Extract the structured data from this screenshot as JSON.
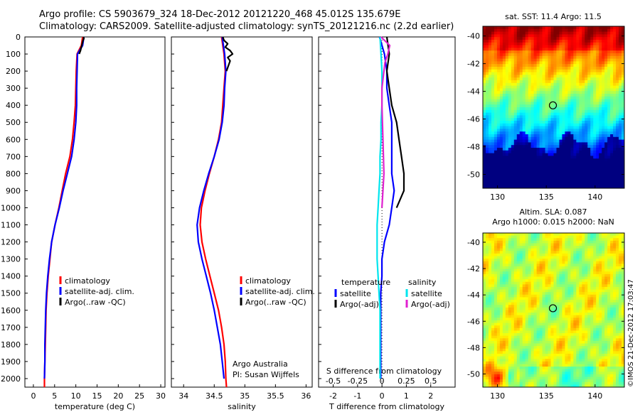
{
  "header": {
    "line1": "Argo profile: CS 5903679_324 18-Dec-2012 20121220_468 45.012S 135.679E",
    "line2": "Climatology: CARS2009. Satellite-adjusted climatology: synTS_20121216.nc (2.2d earlier)"
  },
  "colors": {
    "climatology": "#ff0000",
    "satellite": "#0000ff",
    "argo": "#000000",
    "satellite_s": "#00e5ee",
    "argo_s": "#e020d0"
  },
  "map_top": {
    "title": "sat. SST: 11.4  Argo: 11.5",
    "yticks": [
      "-40",
      "-42",
      "-44",
      "-46",
      "-48",
      "-50"
    ],
    "xticks": [
      "130",
      "135",
      "140"
    ]
  },
  "map_bottom": {
    "title1": "Altim. SLA: 0.087",
    "title2": "Argo h1000: 0.015 h2000: NaN",
    "yticks": [
      "-40",
      "-42",
      "-44",
      "-46",
      "-48",
      "-50"
    ],
    "xticks": [
      "130",
      "135",
      "140"
    ]
  },
  "credit": "©IMOS 21-Dec-2012 17:03:47",
  "chart_data": [
    {
      "type": "line",
      "title": "",
      "xlabel": "temperature (deg C)",
      "ylabel": "",
      "xlim": [
        -2,
        31
      ],
      "ylim": [
        2050,
        0
      ],
      "xticks": [
        0,
        5,
        10,
        15,
        20,
        25,
        30
      ],
      "yticks": [
        0,
        100,
        200,
        300,
        400,
        500,
        600,
        700,
        800,
        900,
        1000,
        1100,
        1200,
        1300,
        1400,
        1500,
        1600,
        1700,
        1800,
        1900,
        2000
      ],
      "legend": [
        "climatology",
        "satellite-adj. clim.",
        "Argo(..raw -QC)"
      ],
      "series": [
        {
          "name": "climatology",
          "depth": [
            0,
            50,
            100,
            200,
            300,
            400,
            500,
            600,
            700,
            800,
            900,
            1000,
            1100,
            1200,
            1300,
            1400,
            1500,
            1600,
            1700,
            1800,
            1900,
            2000,
            2050
          ],
          "values": [
            11.6,
            11.3,
            10.3,
            10.1,
            10.0,
            9.9,
            9.6,
            9.2,
            8.6,
            7.6,
            6.8,
            6.0,
            5.1,
            4.3,
            3.9,
            3.5,
            3.2,
            3.0,
            2.9,
            2.8,
            2.7,
            2.6,
            2.6
          ]
        },
        {
          "name": "satellite-adj. clim.",
          "depth": [
            0,
            50,
            100,
            200,
            300,
            400,
            500,
            600,
            700,
            800,
            900,
            1000,
            1100,
            1200,
            1300,
            1400,
            1500,
            1600,
            1700,
            1800,
            1900,
            2000
          ],
          "values": [
            11.9,
            11.6,
            10.4,
            10.3,
            10.2,
            10.2,
            10.0,
            9.6,
            9.0,
            8.0,
            7.0,
            6.1,
            5.1,
            4.3,
            3.8,
            3.4,
            3.1,
            2.9,
            2.8,
            2.7,
            2.7,
            2.6
          ]
        },
        {
          "name": "Argo(..raw -QC)",
          "depth": [
            0,
            10,
            20,
            40,
            60,
            80,
            100
          ],
          "values": [
            11.8,
            11.9,
            11.7,
            11.5,
            11.3,
            11.1,
            10.8
          ]
        }
      ]
    },
    {
      "type": "line",
      "title": "",
      "xlabel": "salinity",
      "ylabel": "",
      "xlim": [
        33.8,
        36.1
      ],
      "ylim": [
        2050,
        0
      ],
      "xticks": [
        34,
        34.5,
        35,
        35.5,
        36
      ],
      "legend": [
        "climatology",
        "satellite-adj. clim.",
        "Argo(..raw -QC)"
      ],
      "annotation": [
        "Argo Australia",
        "PI: Susan Wijffels"
      ],
      "series": [
        {
          "name": "climatology",
          "depth": [
            0,
            100,
            200,
            300,
            400,
            500,
            600,
            700,
            800,
            900,
            1000,
            1100,
            1200,
            1300,
            1400,
            1500,
            1600,
            1700,
            1800,
            1900,
            2000,
            2050
          ],
          "values": [
            34.62,
            34.66,
            34.68,
            34.66,
            34.64,
            34.62,
            34.57,
            34.5,
            34.42,
            34.35,
            34.29,
            34.27,
            34.3,
            34.36,
            34.43,
            34.5,
            34.57,
            34.62,
            34.66,
            34.68,
            34.69,
            34.7
          ]
        },
        {
          "name": "satellite-adj. clim.",
          "depth": [
            0,
            100,
            200,
            300,
            400,
            500,
            600,
            700,
            800,
            900,
            1000,
            1100,
            1200,
            1300,
            1400,
            1500,
            1600,
            1700,
            1800,
            1900,
            2000
          ],
          "values": [
            34.63,
            34.67,
            34.69,
            34.67,
            34.66,
            34.63,
            34.58,
            34.5,
            34.41,
            34.33,
            34.26,
            34.22,
            34.24,
            34.3,
            34.37,
            34.44,
            34.5,
            34.55,
            34.6,
            34.63,
            34.66
          ]
        },
        {
          "name": "Argo(..raw -QC)",
          "depth": [
            0,
            20,
            40,
            60,
            80,
            100,
            120,
            140,
            160,
            180,
            200
          ],
          "values": [
            34.64,
            34.66,
            34.72,
            34.68,
            34.76,
            34.8,
            34.72,
            34.76,
            34.74,
            34.72,
            34.7
          ]
        }
      ]
    },
    {
      "type": "line",
      "title": "",
      "xlabel": "T difference from climatology",
      "xlabel_top": "S difference from climatology",
      "xlim": [
        -2.6,
        3.0
      ],
      "ylim": [
        2050,
        0
      ],
      "xticks": [
        -2,
        -1,
        0,
        1,
        2
      ],
      "xticks_top": [
        "-0.5",
        "-0.25",
        "0",
        "0.25",
        "0.5"
      ],
      "legend_headers": [
        "temperature",
        "salinity"
      ],
      "legend": [
        "satellite",
        "Argo(-adj)",
        "satellite",
        "Argo(-adj)"
      ],
      "series": [
        {
          "name": "temperature satellite",
          "depth": [
            0,
            100,
            200,
            300,
            400,
            500,
            600,
            700,
            800,
            900,
            1000,
            1100,
            1200,
            1300,
            1400,
            1500,
            1600,
            1700,
            1800,
            1900,
            2000
          ],
          "values": [
            -0.1,
            0.1,
            0.2,
            0.2,
            0.3,
            0.4,
            0.4,
            0.4,
            0.4,
            0.5,
            0.4,
            0.3,
            0.1,
            0.0,
            0.0,
            -0.05,
            -0.05,
            -0.05,
            -0.05,
            -0.05,
            -0.05
          ]
        },
        {
          "name": "temperature Argo(-adj)",
          "depth": [
            0,
            100,
            200,
            300,
            400,
            500,
            600,
            700,
            800,
            900,
            1000
          ],
          "values": [
            0.2,
            0.3,
            0.2,
            0.3,
            0.4,
            0.6,
            0.7,
            0.8,
            0.9,
            0.9,
            0.6
          ]
        },
        {
          "name": "salinity satellite",
          "depth": [
            0,
            100,
            200,
            300,
            400,
            500,
            600,
            700,
            800,
            900,
            1000,
            1100,
            1200,
            1300,
            1400,
            1500,
            1600,
            1700,
            1800,
            1900,
            2000
          ],
          "values": [
            -0.02,
            -0.01,
            0.0,
            0.0,
            0.0,
            -0.01,
            -0.01,
            -0.02,
            -0.02,
            -0.03,
            -0.04,
            -0.05,
            -0.05,
            -0.05,
            -0.04,
            -0.03,
            -0.02,
            -0.02,
            -0.02,
            -0.02,
            -0.02
          ]
        },
        {
          "name": "salinity Argo(-adj)",
          "depth": [
            0,
            50,
            100,
            150,
            200,
            300,
            400,
            600,
            800,
            1000
          ],
          "values": [
            -0.01,
            0.08,
            0.06,
            0.03,
            0.02,
            0.0,
            0.0,
            0.01,
            0.02,
            0.0
          ]
        }
      ]
    }
  ]
}
